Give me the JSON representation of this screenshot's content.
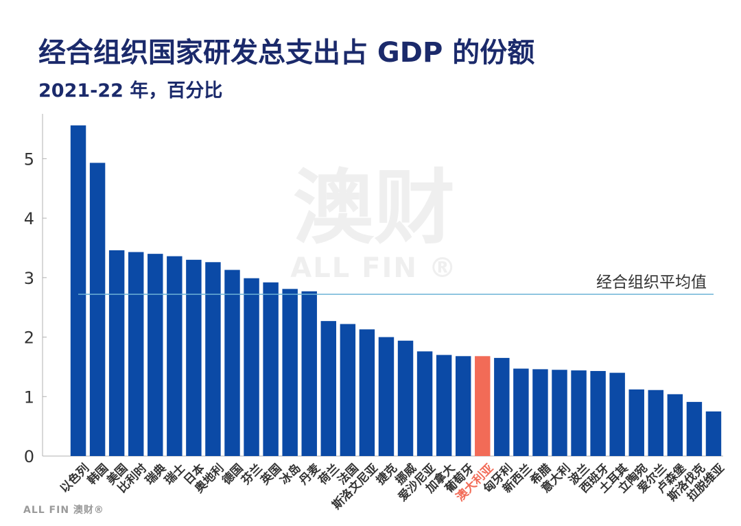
{
  "title": "经合组织国家研发总支出占 GDP 的份额",
  "subtitle": "2021-22 年，百分比",
  "watermark": {
    "big": "澳财",
    "small": "ALL FIN ®"
  },
  "footer_logo": "ALL FIN 澳财®",
  "colors": {
    "bar": "#0b4aa6",
    "highlight": "#f26b57",
    "average_line": "#6cb2d6",
    "axis_text": "#333333",
    "title": "#1b2a6b"
  },
  "chart_data": {
    "type": "bar",
    "title": "经合组织国家研发总支出占 GDP 的份额",
    "subtitle": "2021-22 年，百分比",
    "xlabel": "",
    "ylabel": "",
    "ylim": [
      0,
      5.8
    ],
    "yticks": [
      0,
      1,
      2,
      3,
      4,
      5
    ],
    "grid": false,
    "highlight": "澳大利亚",
    "average": {
      "label": "经合组织平均值",
      "value": 2.72
    },
    "categories": [
      "以色列",
      "韩国",
      "美国",
      "比利时",
      "瑞典",
      "瑞士",
      "日本",
      "奥地利",
      "德国",
      "芬兰",
      "英国",
      "冰岛",
      "丹麦",
      "荷兰",
      "法国",
      "斯洛文尼亚",
      "捷克",
      "挪威",
      "爱沙尼亚",
      "加拿大",
      "葡萄牙",
      "澳大利亚",
      "匈牙利",
      "新西兰",
      "希腊",
      "意大利",
      "波兰",
      "西班牙",
      "土耳其",
      "立陶宛",
      "爱尔兰",
      "卢森堡",
      "斯洛伐克",
      "拉脱维亚"
    ],
    "values": [
      5.56,
      4.93,
      3.46,
      3.43,
      3.4,
      3.36,
      3.3,
      3.26,
      3.13,
      2.99,
      2.92,
      2.81,
      2.77,
      2.27,
      2.22,
      2.13,
      2.0,
      1.94,
      1.76,
      1.7,
      1.68,
      1.68,
      1.65,
      1.47,
      1.46,
      1.45,
      1.44,
      1.43,
      1.4,
      1.12,
      1.11,
      1.04,
      0.91,
      0.75
    ]
  }
}
